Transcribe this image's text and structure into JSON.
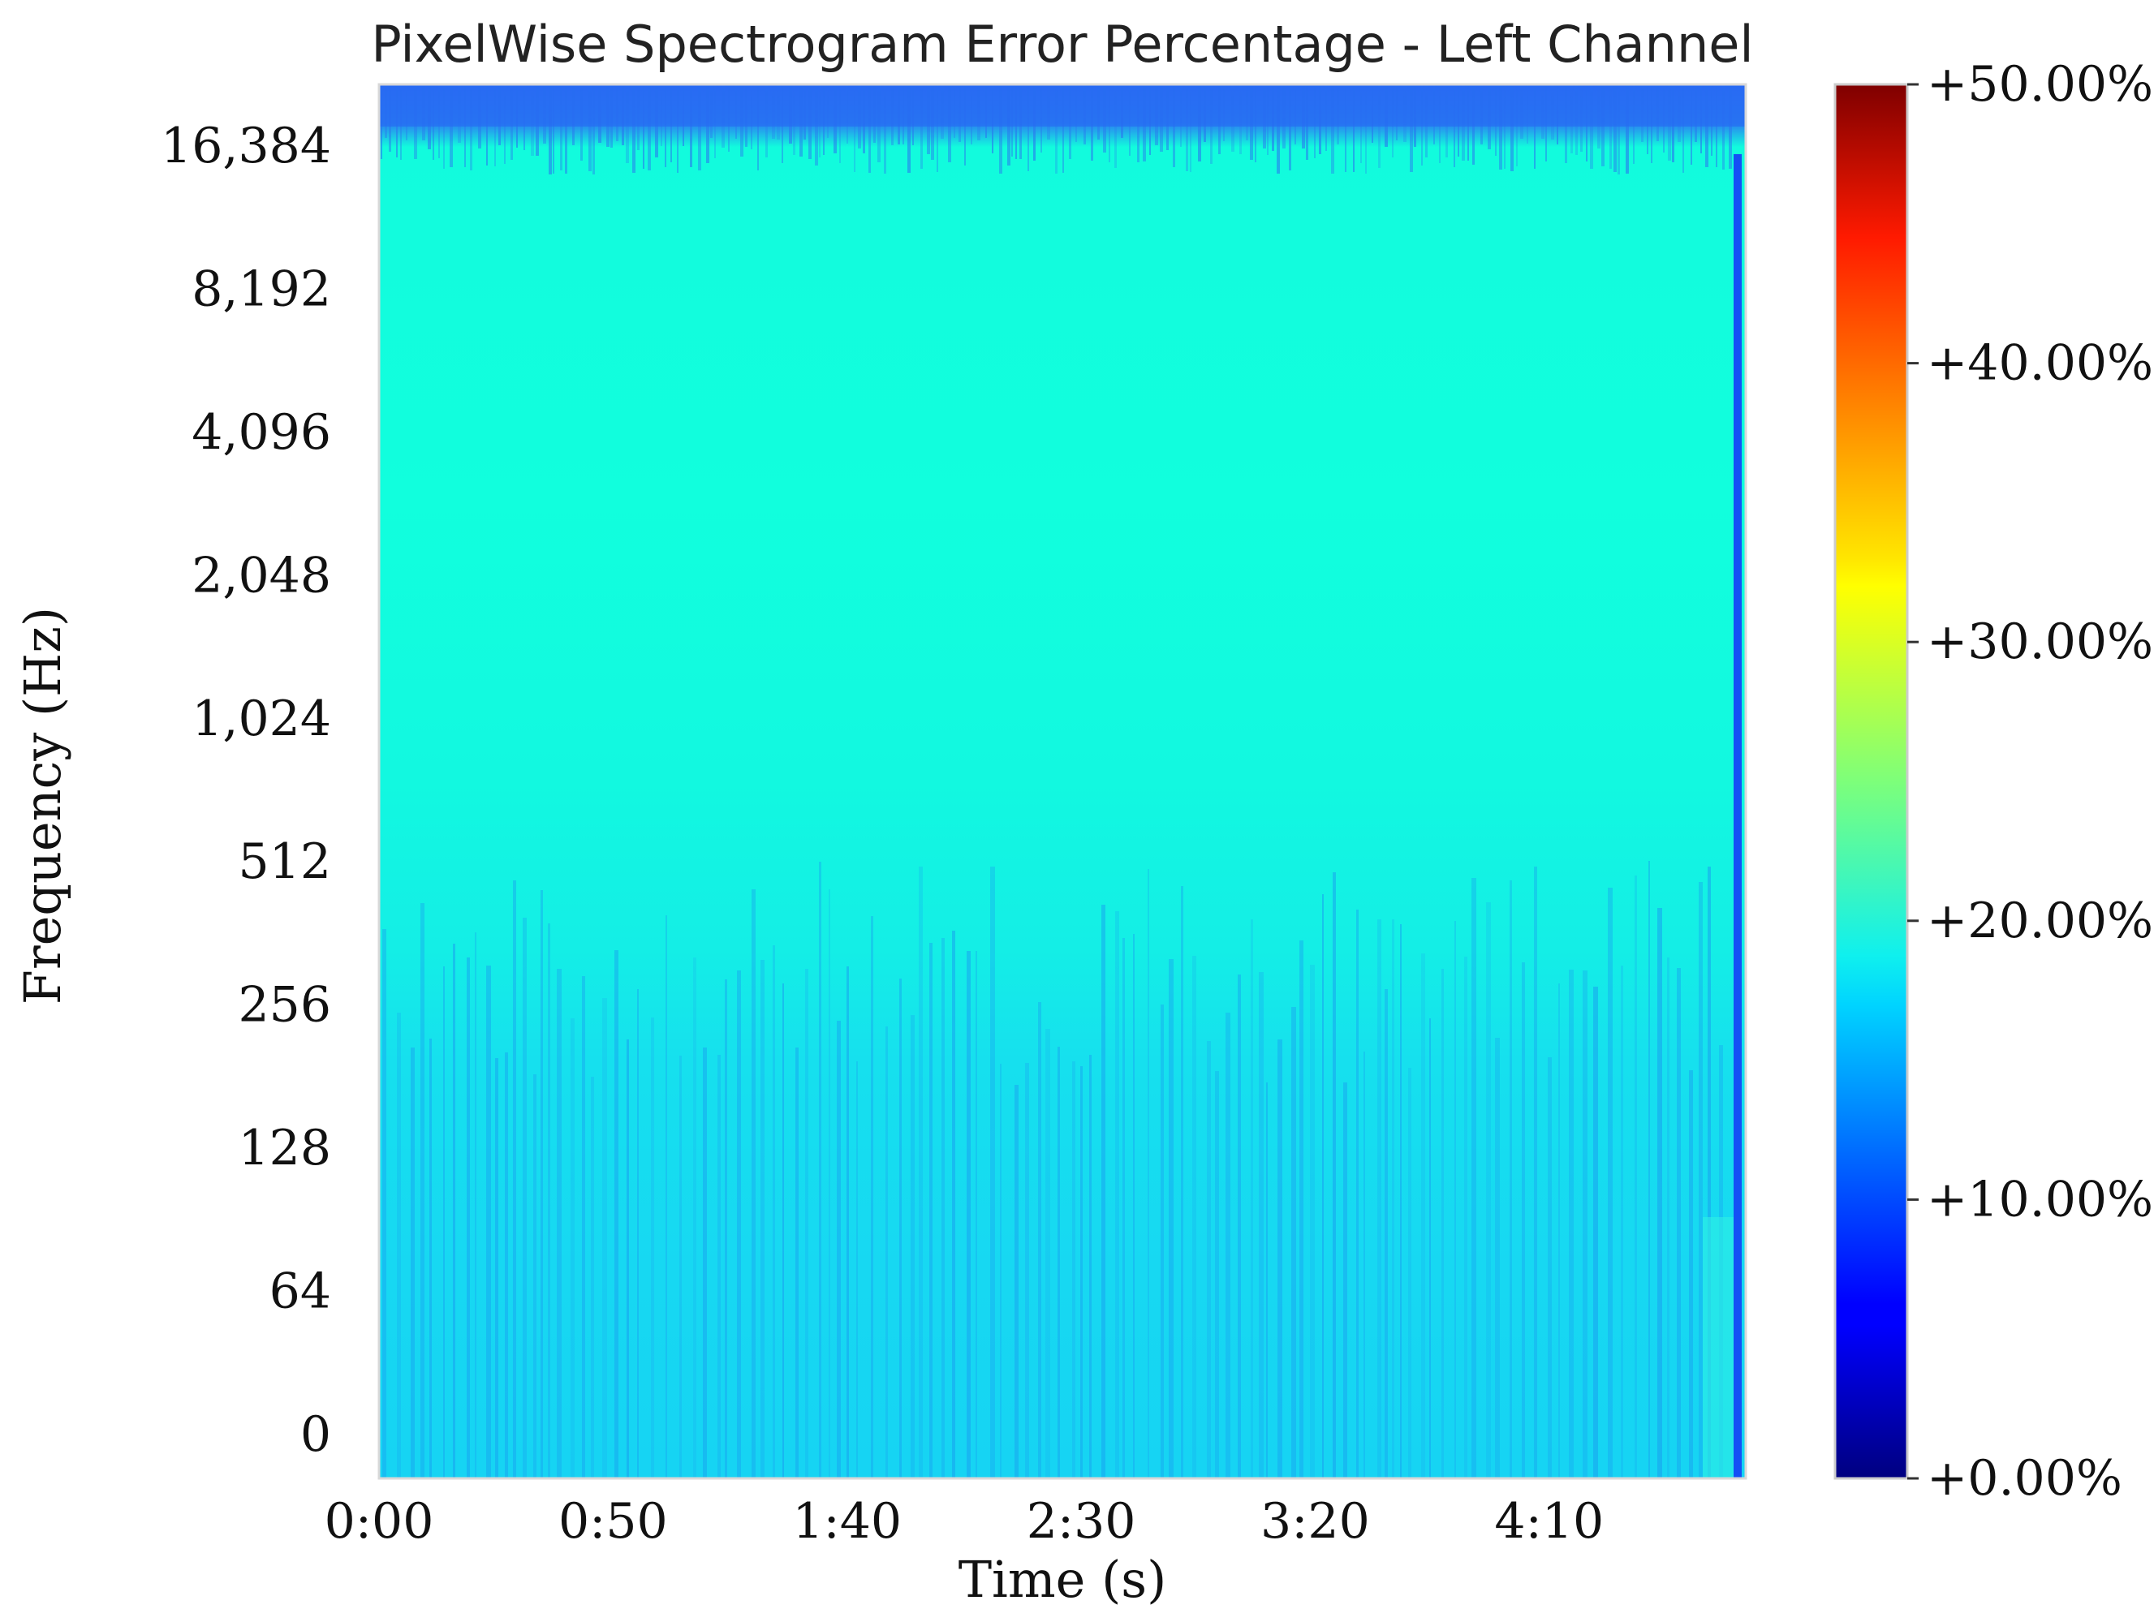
{
  "chart_data": {
    "type": "heatmap",
    "title": "PixelWise Spectrogram Error Percentage - Left Channel",
    "xlabel": "Time (s)",
    "ylabel": "Frequency (Hz)",
    "x_ticks": [
      "0:00",
      "0:50",
      "1:40",
      "2:30",
      "3:20",
      "4:10"
    ],
    "x_tick_seconds": [
      0,
      50,
      100,
      150,
      200,
      250
    ],
    "xlim_seconds": [
      0,
      292
    ],
    "y_scale": "log2",
    "y_ticks": [
      "0",
      "64",
      "128",
      "256",
      "512",
      "1,024",
      "2,048",
      "4,096",
      "8,192",
      "16,384"
    ],
    "colormap": "jet",
    "colorbar_ticks": [
      "+0.00%",
      "+10.00%",
      "+20.00%",
      "+30.00%",
      "+40.00%",
      "+50.00%"
    ],
    "colorbar_range_percent": [
      0,
      50
    ],
    "bands": [
      {
        "freq_range": [
          "0",
          "~256"
        ],
        "error_percent_approx": 14,
        "note": "vertical streaks 10-15%"
      },
      {
        "freq_range": [
          "~256",
          "~2,048"
        ],
        "error_percent_approx": 17
      },
      {
        "freq_range": [
          "~2,048",
          "~16,384"
        ],
        "error_percent_approx": 18
      },
      {
        "freq_range": [
          "~16,384",
          "top"
        ],
        "error_percent_approx": 11
      }
    ],
    "colors": {
      "main_field": "#11ffdd",
      "low_band": "#17d6f2",
      "top_band": "#1f6cf0",
      "right_edge": "#1450f5"
    }
  }
}
